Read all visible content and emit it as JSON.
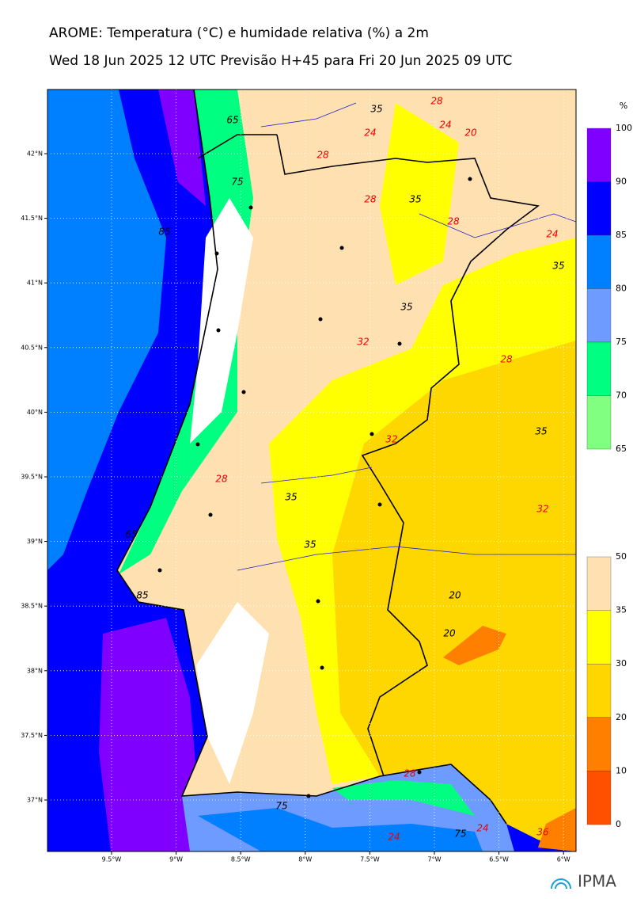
{
  "header": {
    "title": "AROME: Temperatura (°C) e humidade relativa (%) a 2m",
    "subtitle": "Wed 18 Jun 2025 12 UTC Previsão H+45 para Fri 20 Jun 2025 09 UTC"
  },
  "map": {
    "lat_labels": [
      "42°N",
      "41.5°N",
      "41°N",
      "40.5°N",
      "40°N",
      "39.5°N",
      "39°N",
      "38.5°N",
      "38°N",
      "37.5°N",
      "37°N"
    ],
    "lon_labels": [
      "9.5°W",
      "9°W",
      "8.5°W",
      "8°W",
      "7.5°W",
      "7°W",
      "6.5°W",
      "6°W"
    ],
    "contour_labels": [
      35,
      28,
      24,
      20,
      28,
      24,
      28,
      35,
      28,
      24,
      35,
      35,
      32,
      28,
      35,
      32,
      28,
      35,
      35,
      32,
      20,
      20,
      28,
      36,
      24,
      24,
      75,
      75,
      65,
      75,
      85,
      85,
      65
    ]
  },
  "colorbar_humidity": {
    "unit": "%",
    "ticks": [
      100,
      90,
      85,
      80,
      75,
      70,
      65
    ]
  },
  "colorbar_temperature": {
    "ticks": [
      50,
      35,
      30,
      20,
      10,
      0
    ]
  },
  "logo": "IPMA"
}
